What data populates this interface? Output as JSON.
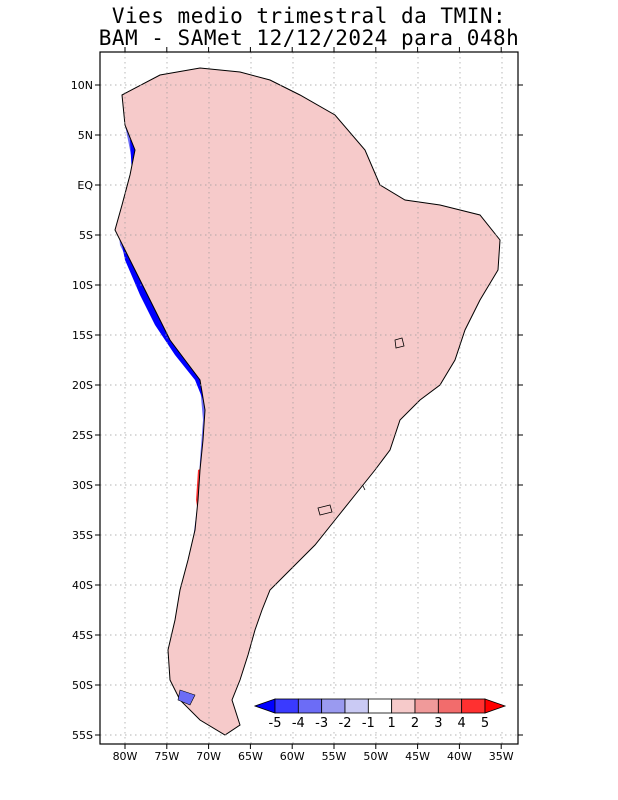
{
  "title": {
    "line1": "Vies medio trimestral da TMIN:",
    "line2": "BAM - SAMet 12/12/2024  para 048h"
  },
  "lat_ticks": [
    "10N",
    "5N",
    "EQ",
    "5S",
    "10S",
    "15S",
    "20S",
    "25S",
    "30S",
    "35S",
    "40S",
    "45S",
    "50S",
    "55S"
  ],
  "lon_ticks": [
    "80W",
    "75W",
    "70W",
    "65W",
    "60W",
    "55W",
    "50W",
    "45W",
    "40W",
    "35W"
  ],
  "colorbar": {
    "labels": [
      "-5",
      "-4",
      "-3",
      "-2",
      "-1",
      "1",
      "2",
      "3",
      "4",
      "5"
    ],
    "colors": [
      "#0000ff",
      "#3a3aff",
      "#6c6cf6",
      "#9a9af0",
      "#cacaf4",
      "#ffffff",
      "#f6caca",
      "#f09a9a",
      "#f26c6c",
      "#ff3030",
      "#ff0000"
    ]
  },
  "field_colors": {
    "ocean": "#ffffff",
    "strong_blue": "#0000ff",
    "mid_blue": "#6c6cf6",
    "light_blue": "#cacaf4",
    "light_red": "#f6caca",
    "mid_red": "#f09a9a",
    "strong_red": "#f26c6c"
  }
}
